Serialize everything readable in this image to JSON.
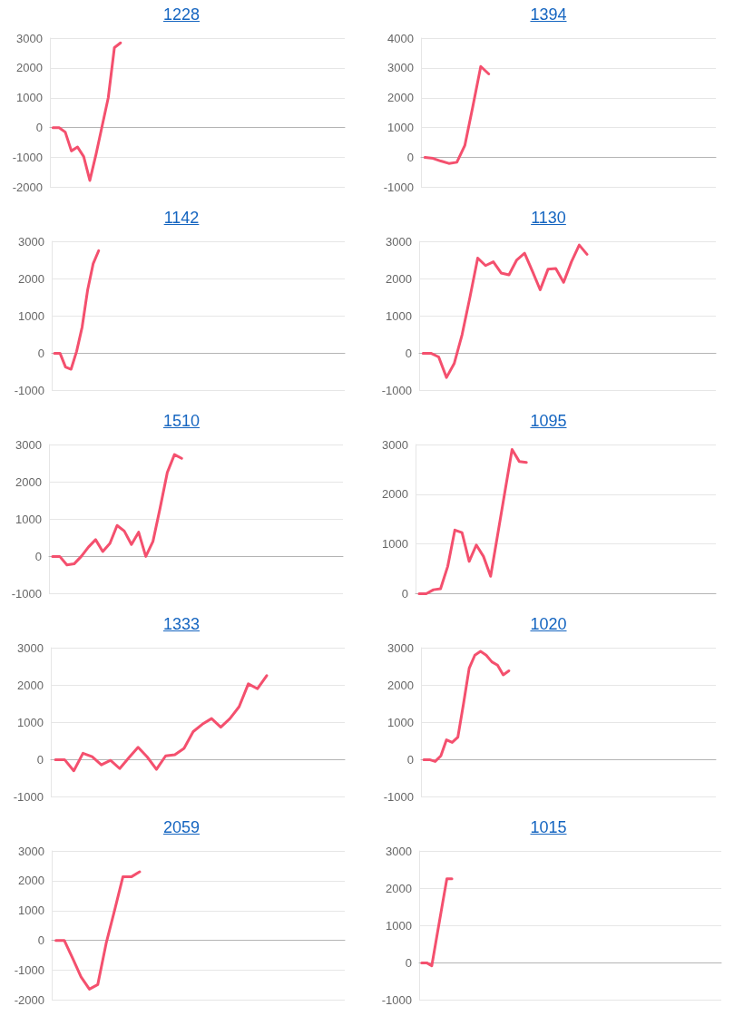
{
  "chart_data": [
    {
      "type": "line",
      "title": "1228",
      "color": "#f4506e",
      "grid": "y",
      "tick_labels": "y",
      "ylim": [
        -2000,
        3000
      ],
      "yticks": [
        -2000,
        -1000,
        0,
        1000,
        2000,
        3000
      ],
      "categories": [
        null,
        null,
        null,
        null,
        null,
        null,
        null,
        null,
        null,
        null,
        null,
        null,
        null,
        null,
        null,
        null,
        null,
        null,
        null,
        null,
        null,
        null,
        null,
        null,
        null,
        null,
        null,
        null,
        null,
        null,
        null,
        null,
        null,
        null,
        null,
        null,
        null,
        null,
        null,
        null,
        null,
        null,
        null,
        null,
        null,
        null,
        null,
        null
      ],
      "values": [
        0,
        0,
        -150,
        -780,
        -650,
        -970,
        -1770,
        -900,
        50,
        1000,
        2680,
        2840,
        null,
        null,
        null,
        null,
        null,
        null,
        null,
        null,
        null,
        null,
        null,
        null,
        null,
        null,
        null,
        null,
        null,
        null,
        null,
        null,
        null,
        null,
        null,
        null,
        null,
        null,
        null,
        null,
        null,
        null,
        null,
        null,
        null,
        null,
        null,
        null
      ]
    },
    {
      "type": "line",
      "title": "1394",
      "color": "#f4506e",
      "grid": "y",
      "tick_labels": "y",
      "ylim": [
        -1000,
        4000
      ],
      "yticks": [
        -1000,
        0,
        1000,
        2000,
        3000,
        4000
      ],
      "categories": [
        null,
        null,
        null,
        null,
        null,
        null,
        null,
        null,
        null,
        null,
        null,
        null,
        null,
        null,
        null,
        null,
        null,
        null,
        null,
        null,
        null,
        null,
        null,
        null,
        null,
        null,
        null,
        null,
        null,
        null,
        null,
        null,
        null,
        null,
        null,
        null,
        null
      ],
      "values": [
        0,
        -30,
        -120,
        -200,
        -160,
        400,
        1700,
        3050,
        2800,
        null,
        null,
        null,
        null,
        null,
        null,
        null,
        null,
        null,
        null,
        null,
        null,
        null,
        null,
        null,
        null,
        null,
        null,
        null,
        null,
        null,
        null,
        null,
        null,
        null,
        null,
        null,
        null
      ]
    },
    {
      "type": "line",
      "title": "1142",
      "color": "#f4506e",
      "grid": "y",
      "tick_labels": "y",
      "ylim": [
        -1000,
        3000
      ],
      "yticks": [
        -1000,
        0,
        1000,
        2000,
        3000
      ],
      "categories": [
        null,
        null,
        null,
        null,
        null,
        null,
        null,
        null,
        null,
        null,
        null,
        null,
        null,
        null,
        null,
        null,
        null,
        null,
        null,
        null,
        null,
        null,
        null,
        null,
        null,
        null,
        null,
        null,
        null,
        null,
        null,
        null,
        null,
        null,
        null,
        null,
        null,
        null,
        null,
        null,
        null,
        null,
        null,
        null,
        null,
        null,
        null,
        null,
        null,
        null,
        null,
        null,
        null
      ],
      "values": [
        0,
        0,
        -370,
        -430,
        50,
        700,
        1700,
        2400,
        2750,
        null,
        null,
        null,
        null,
        null,
        null,
        null,
        null,
        null,
        null,
        null,
        null,
        null,
        null,
        null,
        null,
        null,
        null,
        null,
        null,
        null,
        null,
        null,
        null,
        null,
        null,
        null,
        null,
        null,
        null,
        null,
        null,
        null,
        null,
        null,
        null,
        null,
        null,
        null,
        null,
        null,
        null,
        null,
        null
      ]
    },
    {
      "type": "line",
      "title": "1130",
      "color": "#f4506e",
      "grid": "y",
      "tick_labels": "y",
      "ylim": [
        -1000,
        3000
      ],
      "yticks": [
        -1000,
        0,
        1000,
        2000,
        3000
      ],
      "categories": [
        null,
        null,
        null,
        null,
        null,
        null,
        null,
        null,
        null,
        null,
        null,
        null,
        null,
        null,
        null,
        null,
        null,
        null,
        null,
        null,
        null,
        null,
        null,
        null,
        null,
        null,
        null,
        null,
        null,
        null,
        null,
        null,
        null,
        null,
        null,
        null,
        null,
        null
      ],
      "values": [
        0,
        0,
        -100,
        -650,
        -270,
        500,
        1500,
        2550,
        2350,
        2450,
        2150,
        2100,
        2500,
        2680,
        2200,
        1700,
        2250,
        2270,
        1900,
        2450,
        2900,
        2650,
        null,
        null,
        null,
        null,
        null,
        null,
        null,
        null,
        null,
        null,
        null,
        null,
        null,
        null,
        null,
        null
      ]
    },
    {
      "type": "line",
      "title": "1510",
      "color": "#f4506e",
      "grid": "y",
      "tick_labels": "y",
      "ylim": [
        -1000,
        3000
      ],
      "yticks": [
        -1000,
        0,
        1000,
        2000,
        3000
      ],
      "categories": [
        null,
        null,
        null,
        null,
        null,
        null,
        null,
        null,
        null,
        null,
        null,
        null,
        null,
        null,
        null,
        null,
        null,
        null,
        null,
        null,
        null,
        null,
        null,
        null,
        null,
        null,
        null,
        null,
        null,
        null,
        null,
        null,
        null,
        null,
        null,
        null,
        null,
        null,
        null,
        null,
        null
      ],
      "values": [
        0,
        0,
        -230,
        -200,
        0,
        250,
        450,
        130,
        350,
        830,
        680,
        320,
        650,
        0,
        400,
        1300,
        2250,
        2730,
        2630,
        null,
        null,
        null,
        null,
        null,
        null,
        null,
        null,
        null,
        null,
        null,
        null,
        null,
        null,
        null,
        null,
        null,
        null,
        null,
        null,
        null,
        null
      ]
    },
    {
      "type": "line",
      "title": "1095",
      "color": "#f4506e",
      "grid": "y",
      "tick_labels": "y",
      "ylim": [
        0,
        3000
      ],
      "yticks": [
        0,
        1000,
        2000,
        3000
      ],
      "categories": [
        null,
        null,
        null,
        null,
        null,
        null,
        null,
        null,
        null,
        null,
        null,
        null,
        null,
        null,
        null,
        null,
        null,
        null,
        null,
        null,
        null,
        null,
        null,
        null,
        null,
        null,
        null,
        null,
        null,
        null,
        null,
        null,
        null,
        null,
        null,
        null,
        null,
        null,
        null,
        null,
        null,
        null
      ],
      "values": [
        0,
        0,
        80,
        100,
        550,
        1280,
        1230,
        650,
        980,
        750,
        350,
        1200,
        2050,
        2900,
        2660,
        2640,
        null,
        null,
        null,
        null,
        null,
        null,
        null,
        null,
        null,
        null,
        null,
        null,
        null,
        null,
        null,
        null,
        null,
        null,
        null,
        null,
        null,
        null,
        null,
        null,
        null,
        null
      ]
    },
    {
      "type": "line",
      "title": "1333",
      "color": "#f4506e",
      "grid": "y",
      "tick_labels": "y",
      "ylim": [
        -1000,
        3000
      ],
      "yticks": [
        -1000,
        0,
        1000,
        2000,
        3000
      ],
      "categories": [
        null,
        null,
        null,
        null,
        null,
        null,
        null,
        null,
        null,
        null,
        null,
        null,
        null,
        null,
        null,
        null,
        null,
        null,
        null,
        null,
        null,
        null,
        null,
        null,
        null,
        null,
        null,
        null,
        null,
        null,
        null,
        null
      ],
      "values": [
        0,
        0,
        -300,
        170,
        80,
        -140,
        -20,
        -240,
        50,
        330,
        70,
        -260,
        100,
        130,
        300,
        750,
        950,
        1100,
        870,
        1100,
        1420,
        2030,
        1900,
        2250,
        null,
        null,
        null,
        null,
        null,
        null,
        null,
        null
      ]
    },
    {
      "type": "line",
      "title": "1020",
      "color": "#f4506e",
      "grid": "y",
      "tick_labels": "y",
      "ylim": [
        -1000,
        3000
      ],
      "yticks": [
        -1000,
        0,
        1000,
        2000,
        3000
      ],
      "categories": [
        null,
        null,
        null,
        null,
        null,
        null,
        null,
        null,
        null,
        null,
        null,
        null,
        null,
        null,
        null,
        null,
        null,
        null,
        null,
        null,
        null,
        null,
        null,
        null,
        null,
        null,
        null,
        null,
        null,
        null,
        null,
        null,
        null,
        null,
        null,
        null,
        null,
        null,
        null,
        null,
        null,
        null,
        null,
        null,
        null,
        null,
        null,
        null,
        null,
        null,
        null,
        null
      ],
      "values": [
        0,
        0,
        -50,
        100,
        530,
        460,
        600,
        1500,
        2450,
        2800,
        2900,
        2800,
        2620,
        2530,
        2270,
        2380,
        null,
        null,
        null,
        null,
        null,
        null,
        null,
        null,
        null,
        null,
        null,
        null,
        null,
        null,
        null,
        null,
        null,
        null,
        null,
        null,
        null,
        null,
        null,
        null,
        null,
        null,
        null,
        null,
        null,
        null,
        null,
        null,
        null,
        null,
        null,
        null
      ]
    },
    {
      "type": "line",
      "title": "2059",
      "color": "#f4506e",
      "grid": "y",
      "tick_labels": "y",
      "ylim": [
        -2000,
        3000
      ],
      "yticks": [
        -2000,
        -1000,
        0,
        1000,
        2000,
        3000
      ],
      "categories": [
        null,
        null,
        null,
        null,
        null,
        null,
        null,
        null,
        null,
        null,
        null,
        null,
        null,
        null,
        null,
        null,
        null,
        null,
        null,
        null,
        null,
        null,
        null,
        null,
        null,
        null,
        null,
        null,
        null,
        null,
        null,
        null,
        null,
        null,
        null
      ],
      "values": [
        0,
        0,
        -600,
        -1220,
        -1630,
        -1480,
        -100,
        1000,
        2130,
        2130,
        2300,
        null,
        null,
        null,
        null,
        null,
        null,
        null,
        null,
        null,
        null,
        null,
        null,
        null,
        null,
        null,
        null,
        null,
        null,
        null,
        null,
        null,
        null,
        null,
        null
      ]
    },
    {
      "type": "line",
      "title": "1015",
      "color": "#f4506e",
      "grid": "y",
      "tick_labels": "y",
      "ylim": [
        -1000,
        3000
      ],
      "yticks": [
        -1000,
        0,
        1000,
        2000,
        3000
      ],
      "categories": [
        null,
        null,
        null,
        null,
        null,
        null,
        null,
        null,
        null,
        null,
        null,
        null,
        null,
        null,
        null,
        null,
        null,
        null,
        null,
        null,
        null,
        null,
        null,
        null,
        null,
        null,
        null,
        null,
        null,
        null,
        null,
        null,
        null,
        null,
        null,
        null,
        null,
        null,
        null,
        null,
        null,
        null,
        null,
        null,
        null,
        null,
        null,
        null,
        null,
        null,
        null,
        null,
        null,
        null,
        null,
        null,
        null,
        null,
        null,
        null
      ],
      "values": [
        0,
        0,
        -80,
        700,
        1480,
        2250,
        2250,
        null,
        null,
        null,
        null,
        null,
        null,
        null,
        null,
        null,
        null,
        null,
        null,
        null,
        null,
        null,
        null,
        null,
        null,
        null,
        null,
        null,
        null,
        null,
        null,
        null,
        null,
        null,
        null,
        null,
        null,
        null,
        null,
        null,
        null,
        null,
        null,
        null,
        null,
        null,
        null,
        null,
        null,
        null,
        null,
        null,
        null,
        null,
        null,
        null,
        null,
        null,
        null,
        null
      ]
    }
  ]
}
